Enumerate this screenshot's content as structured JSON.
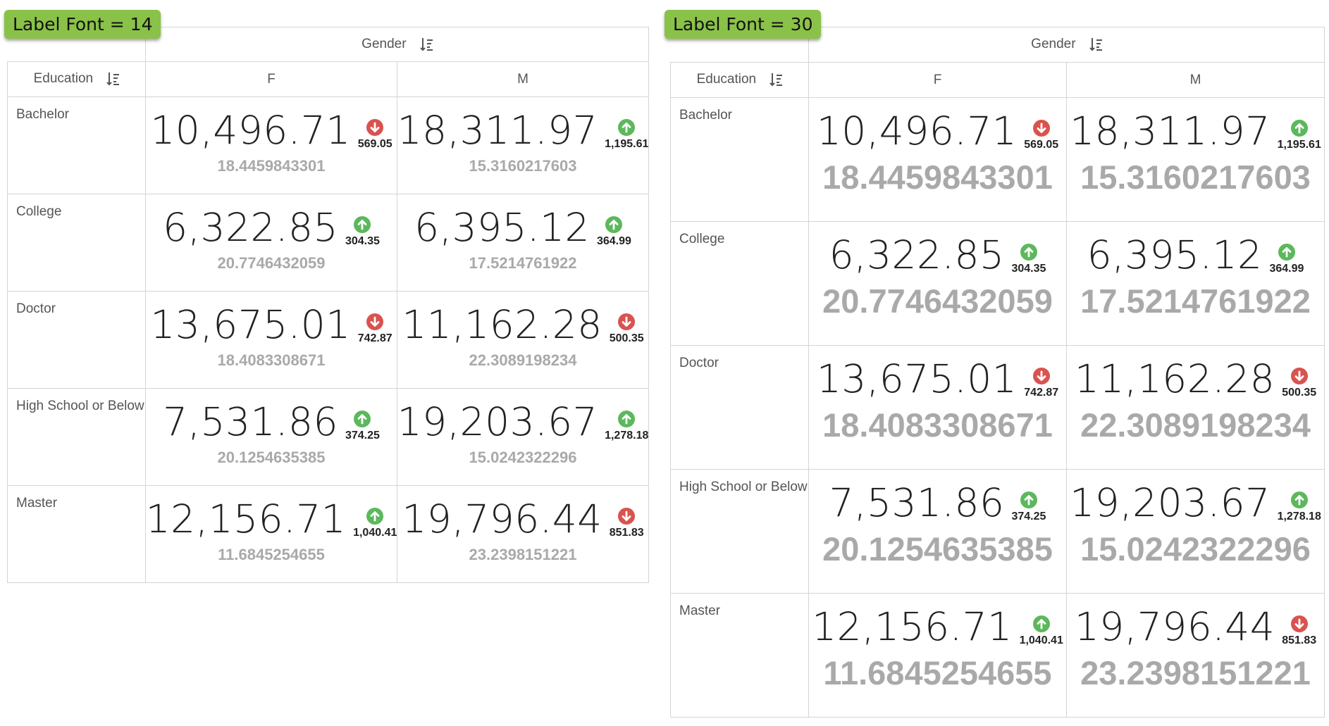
{
  "panels": [
    {
      "label": "Label Font = 14",
      "column_dimension": "Gender",
      "row_dimension": "Education",
      "columns": [
        "F",
        "M"
      ]
    },
    {
      "label": "Label Font = 30",
      "column_dimension": "Gender",
      "row_dimension": "Education",
      "columns": [
        "F",
        "M"
      ]
    }
  ],
  "rows": [
    {
      "label": "Bachelor",
      "cells": [
        {
          "value": "10,496.71",
          "change": "569.05",
          "direction": "down",
          "sub": "18.4459843301"
        },
        {
          "value": "18,311.97",
          "change": "1,195.61",
          "direction": "up",
          "sub": "15.3160217603"
        }
      ]
    },
    {
      "label": "College",
      "cells": [
        {
          "value": "6,322.85",
          "change": "304.35",
          "direction": "up",
          "sub": "20.7746432059"
        },
        {
          "value": "6,395.12",
          "change": "364.99",
          "direction": "up",
          "sub": "17.5214761922"
        }
      ]
    },
    {
      "label": "Doctor",
      "cells": [
        {
          "value": "13,675.01",
          "change": "742.87",
          "direction": "down",
          "sub": "18.4083308671"
        },
        {
          "value": "11,162.28",
          "change": "500.35",
          "direction": "down",
          "sub": "22.3089198234"
        }
      ]
    },
    {
      "label": "High School or Below",
      "cells": [
        {
          "value": "7,531.86",
          "change": "374.25",
          "direction": "up",
          "sub": "20.1254635385"
        },
        {
          "value": "19,203.67",
          "change": "1,278.18",
          "direction": "up",
          "sub": "15.0242322296"
        }
      ]
    },
    {
      "label": "Master",
      "cells": [
        {
          "value": "12,156.71",
          "change": "1,040.41",
          "direction": "up",
          "sub": "11.6845254655"
        },
        {
          "value": "19,796.44",
          "change": "851.83",
          "direction": "down",
          "sub": "23.2398151221"
        }
      ]
    }
  ],
  "colors": {
    "up": "#5cb85c",
    "down": "#d9534f",
    "tag_background": "#8ac249",
    "sub_value": "#a9a9a9",
    "border": "#d4d4d4"
  },
  "icons": {
    "up": "arrow-up-circle-icon",
    "down": "arrow-down-circle-icon",
    "sort": "sort-descending-icon"
  }
}
